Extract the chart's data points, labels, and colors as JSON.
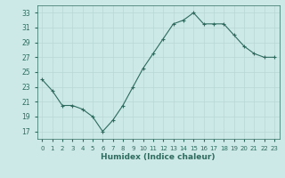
{
  "x": [
    0,
    1,
    2,
    3,
    4,
    5,
    6,
    7,
    8,
    9,
    10,
    11,
    12,
    13,
    14,
    15,
    16,
    17,
    18,
    19,
    20,
    21,
    22,
    23
  ],
  "y": [
    24,
    22.5,
    20.5,
    20.5,
    20,
    19,
    17,
    18.5,
    20.5,
    23,
    25.5,
    27.5,
    29.5,
    31.5,
    32,
    33,
    31.5,
    31.5,
    31.5,
    30,
    28.5,
    27.5,
    27,
    27
  ],
  "line_color": "#2e6b5e",
  "marker": "+",
  "bg_color": "#cce9e7",
  "grid_color": "#b8d8d5",
  "tick_label_color": "#2e6b5e",
  "xlabel": "Humidex (Indice chaleur)",
  "xlabel_color": "#2e6b5e",
  "xlim": [
    -0.5,
    23.5
  ],
  "ylim": [
    16,
    34
  ],
  "yticks": [
    17,
    19,
    21,
    23,
    25,
    27,
    29,
    31,
    33
  ],
  "xticks": [
    0,
    1,
    2,
    3,
    4,
    5,
    6,
    7,
    8,
    9,
    10,
    11,
    12,
    13,
    14,
    15,
    16,
    17,
    18,
    19,
    20,
    21,
    22,
    23
  ]
}
